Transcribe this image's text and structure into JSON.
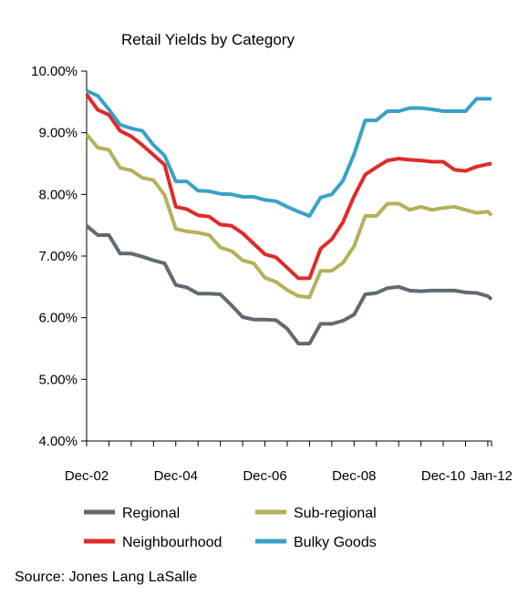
{
  "chart_data": {
    "type": "line",
    "title": "Retail Yields by Category",
    "x_tick_labels": [
      "Dec-02",
      "Dec-04",
      "Dec-06",
      "Dec-08",
      "Dec-10",
      "Jan-12"
    ],
    "y_tick_labels": [
      "4.00%",
      "5.00%",
      "6.00%",
      "7.00%",
      "8.00%",
      "9.00%",
      "10.00%"
    ],
    "ylim": [
      4.0,
      10.0
    ],
    "x_range": [
      "2002-12",
      "2012-01"
    ],
    "y_unit": "percent",
    "grid": false,
    "legend_position": "bottom",
    "x": [
      "2002-12",
      "2003-03",
      "2003-06",
      "2003-09",
      "2003-12",
      "2004-03",
      "2004-06",
      "2004-09",
      "2004-12",
      "2005-03",
      "2005-06",
      "2005-09",
      "2005-12",
      "2006-03",
      "2006-06",
      "2006-09",
      "2006-12",
      "2007-03",
      "2007-06",
      "2007-09",
      "2007-12",
      "2008-03",
      "2008-06",
      "2008-09",
      "2008-12",
      "2009-03",
      "2009-06",
      "2009-09",
      "2009-12",
      "2010-03",
      "2010-06",
      "2010-09",
      "2010-12",
      "2011-03",
      "2011-06",
      "2011-09",
      "2011-12",
      "2012-01"
    ],
    "series": [
      {
        "name": "Regional",
        "color": "#5f6a72",
        "values": [
          7.49,
          7.34,
          7.34,
          7.04,
          7.04,
          6.99,
          6.93,
          6.88,
          6.53,
          6.49,
          6.39,
          6.39,
          6.38,
          6.2,
          6.01,
          5.97,
          5.97,
          5.96,
          5.82,
          5.58,
          5.58,
          5.9,
          5.9,
          5.95,
          6.05,
          6.38,
          6.4,
          6.48,
          6.5,
          6.44,
          6.43,
          6.44,
          6.44,
          6.44,
          6.41,
          6.4,
          6.35,
          6.3
        ]
      },
      {
        "name": "Sub-regional",
        "color": "#b5b05a",
        "values": [
          8.97,
          8.76,
          8.72,
          8.43,
          8.39,
          8.27,
          8.23,
          7.99,
          7.44,
          7.4,
          7.38,
          7.34,
          7.14,
          7.08,
          6.93,
          6.88,
          6.65,
          6.58,
          6.45,
          6.35,
          6.33,
          6.76,
          6.76,
          6.89,
          7.16,
          7.65,
          7.65,
          7.85,
          7.85,
          7.75,
          7.8,
          7.75,
          7.78,
          7.8,
          7.75,
          7.7,
          7.72,
          7.66
        ]
      },
      {
        "name": "Neighbourhood",
        "color": "#e02a2a",
        "values": [
          9.62,
          9.37,
          9.29,
          9.03,
          8.94,
          8.8,
          8.64,
          8.48,
          7.8,
          7.76,
          7.66,
          7.64,
          7.51,
          7.49,
          7.37,
          7.2,
          7.03,
          6.98,
          6.81,
          6.64,
          6.64,
          7.12,
          7.27,
          7.55,
          7.97,
          8.32,
          8.44,
          8.55,
          8.58,
          8.56,
          8.55,
          8.53,
          8.53,
          8.4,
          8.38,
          8.45,
          8.49,
          8.5
        ]
      },
      {
        "name": "Bulky Goods",
        "color": "#3aa1c6",
        "values": [
          9.68,
          9.6,
          9.38,
          9.13,
          9.07,
          9.03,
          8.8,
          8.63,
          8.21,
          8.21,
          8.06,
          8.05,
          8.01,
          8.0,
          7.96,
          7.96,
          7.91,
          7.89,
          7.8,
          7.72,
          7.65,
          7.95,
          8.0,
          8.22,
          8.65,
          9.2,
          9.2,
          9.35,
          9.35,
          9.4,
          9.4,
          9.38,
          9.35,
          9.35,
          9.35,
          9.55,
          9.55,
          9.55
        ]
      }
    ],
    "source": "Source: Jones Lang LaSalle"
  }
}
